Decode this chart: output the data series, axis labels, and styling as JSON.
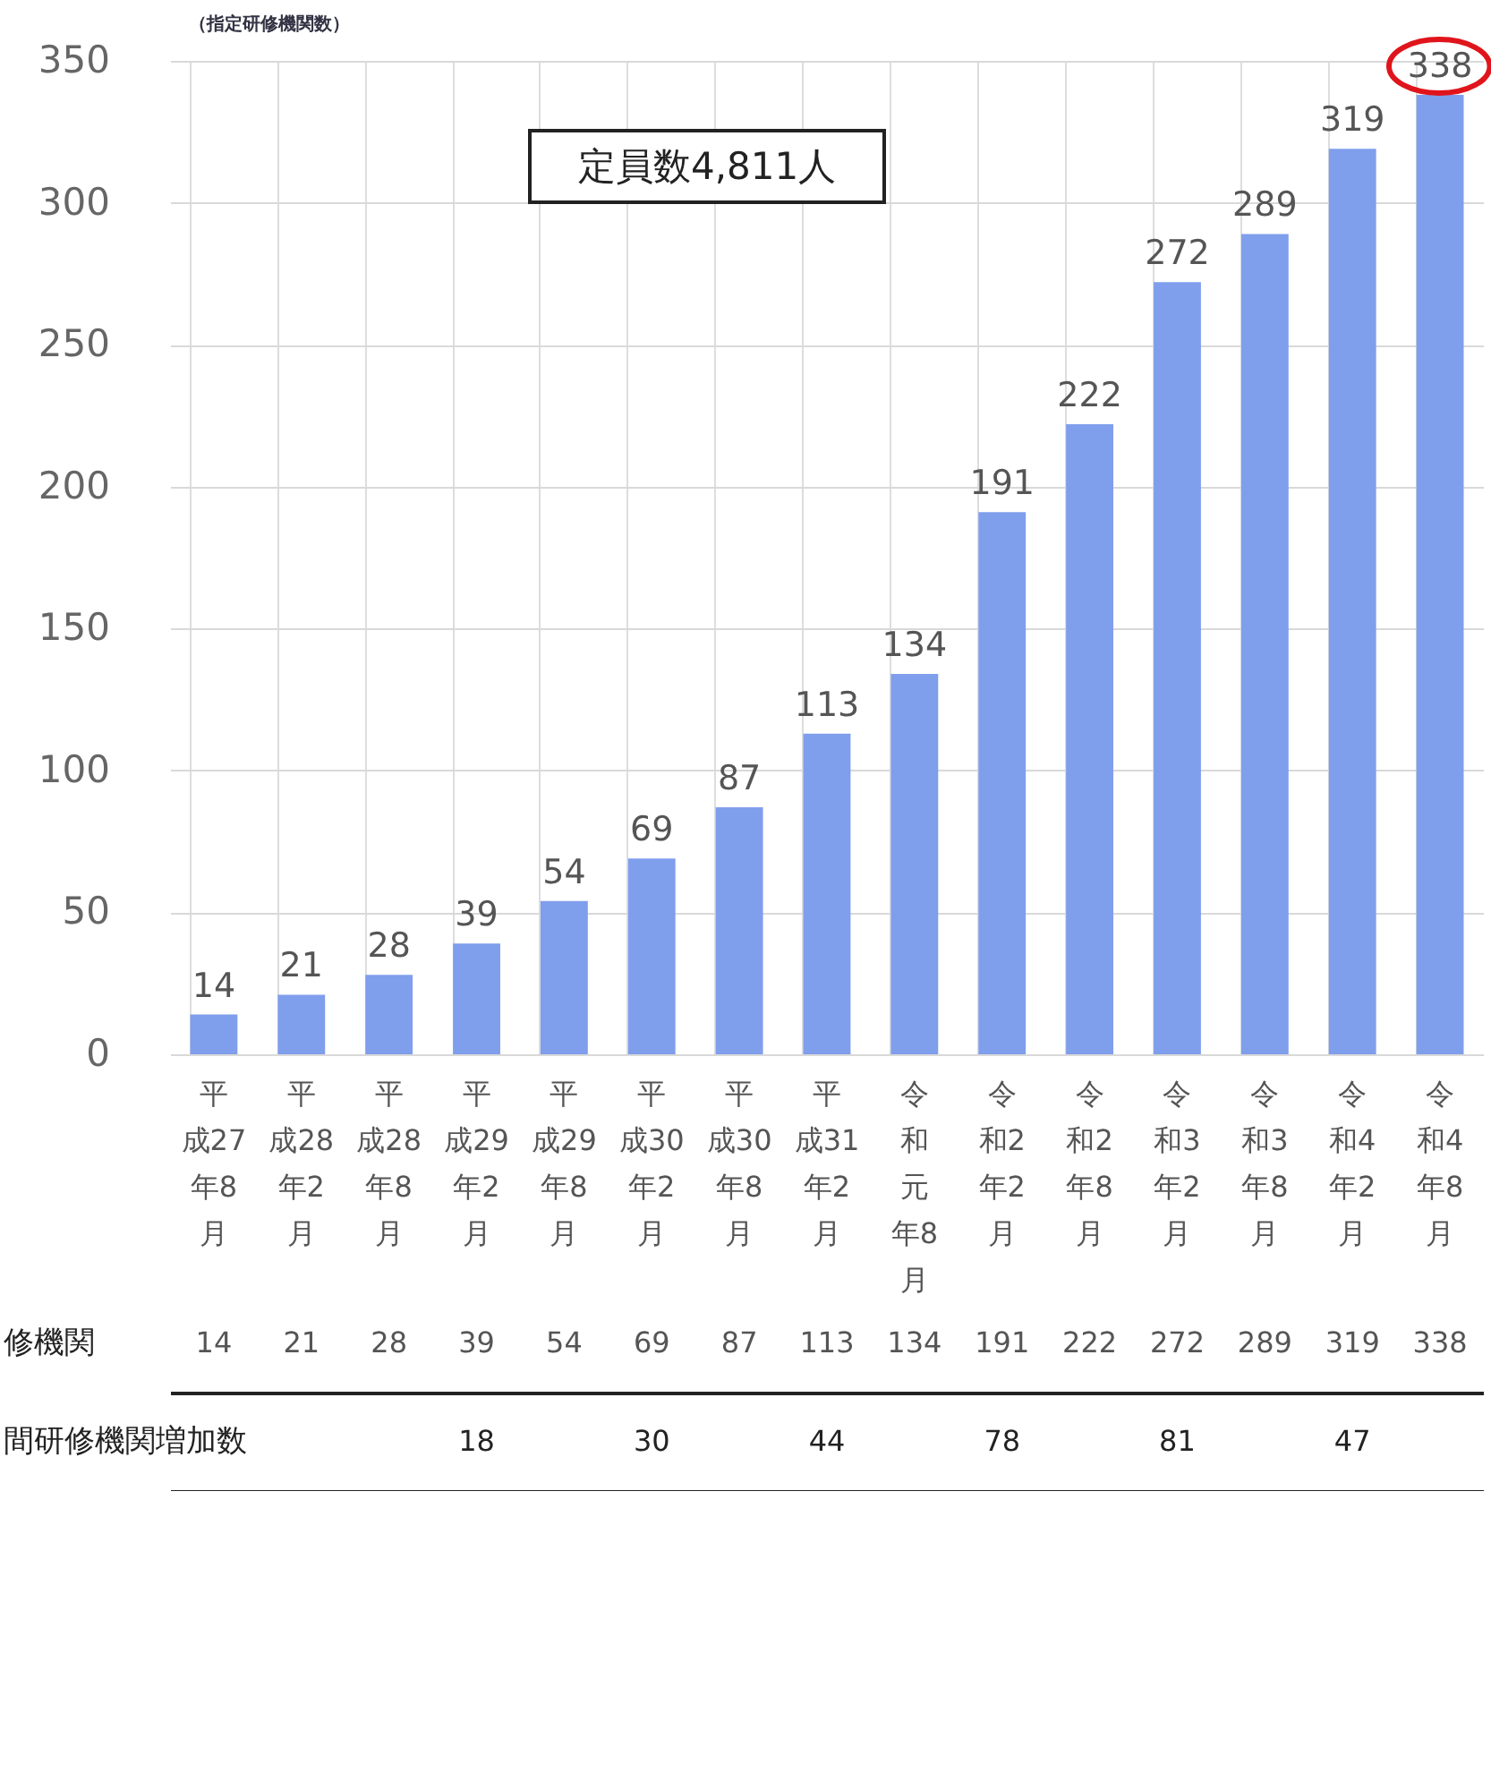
{
  "chart_data": {
    "type": "bar",
    "ylabel": "（指定研修機関数）",
    "categories": [
      "平成27年8月",
      "平成28年2月",
      "平成28年8月",
      "平成29年2月",
      "平成29年8月",
      "平成30年2月",
      "平成30年8月",
      "平成31年2月",
      "令和元年8月",
      "令和2年2月",
      "令和2年8月",
      "令和3年2月",
      "令和3年8月",
      "令和4年2月",
      "令和4年8月"
    ],
    "values": [
      14,
      21,
      28,
      39,
      54,
      69,
      87,
      113,
      134,
      191,
      222,
      272,
      289,
      319,
      338
    ],
    "color": "#7f9eec",
    "ylim": [
      0,
      350
    ],
    "yticks": [
      0,
      50,
      100,
      150,
      200,
      250,
      300,
      350
    ],
    "grid": "y",
    "data_labels": true,
    "annotations": [
      "定員数4,811人",
      "修機関",
      "14",
      "21",
      "28",
      "39",
      "54",
      "69",
      "87",
      "113",
      "134",
      "191",
      "222",
      "272",
      "289",
      "319",
      "338",
      "間研修機関増加数",
      "18",
      "30",
      "44",
      "78",
      "81",
      "47"
    ]
  }
}
